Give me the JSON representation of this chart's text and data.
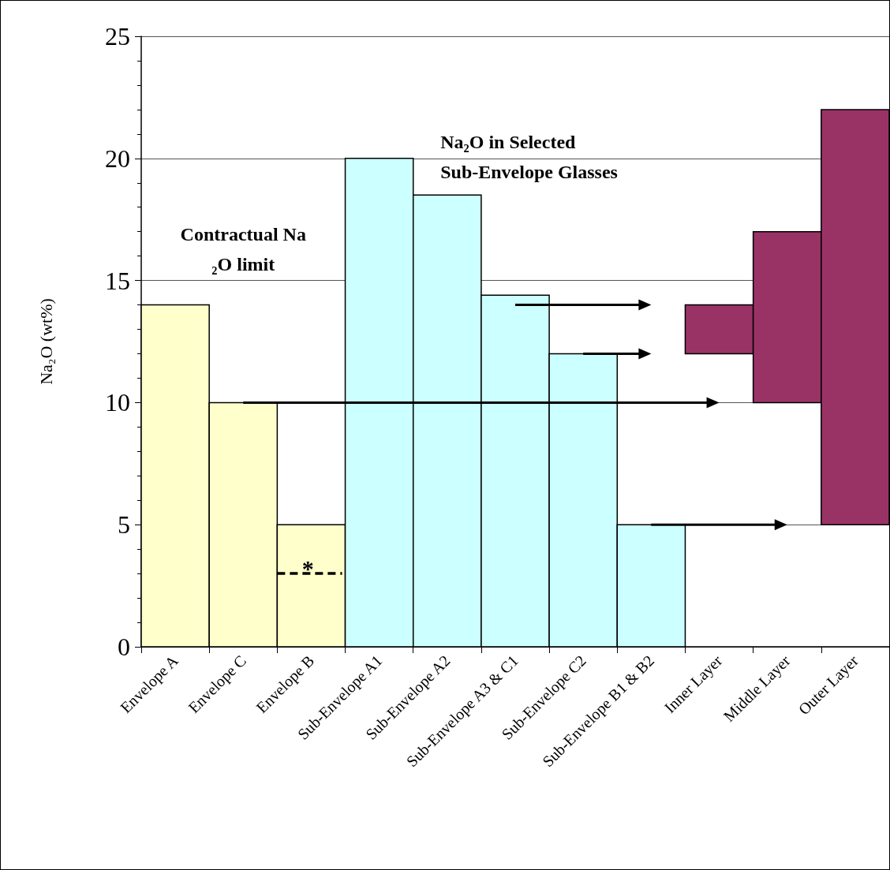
{
  "chart_data": {
    "type": "bar",
    "ylabel": "Na₂O (wt%)",
    "categories": [
      "Envelope A",
      "Envelope C",
      "Envelope B",
      "Sub-Envelope A1",
      "Sub-Envelope A2",
      "Sub-Envelope A3 & C1",
      "Sub-Envelope C2",
      "Sub-Envelope B1 & B2",
      "Inner Layer",
      "Middle Layer",
      "Outer Layer"
    ],
    "values": [
      14,
      10,
      5,
      20,
      18.5,
      14.4,
      12,
      5,
      2,
      7,
      17
    ],
    "base": [
      0,
      0,
      0,
      0,
      0,
      0,
      0,
      0,
      12,
      10,
      5
    ],
    "colors": [
      "#ffffcc",
      "#ffffcc",
      "#ffffcc",
      "#ccffff",
      "#ccffff",
      "#ccffff",
      "#ccffff",
      "#ccffff",
      "#993366",
      "#993366",
      "#993366"
    ],
    "ylim": [
      0,
      25
    ],
    "yticks": [
      0,
      5,
      10,
      15,
      20,
      25
    ],
    "grid": "y",
    "ref_lines": [
      {
        "axis": "y",
        "value": 3,
        "label": "*",
        "line_style": "dashed"
      }
    ],
    "annotations": [
      "Contractual Na₂O limit",
      "Na₂O in Selected Sub-Envelope Glasses"
    ]
  }
}
